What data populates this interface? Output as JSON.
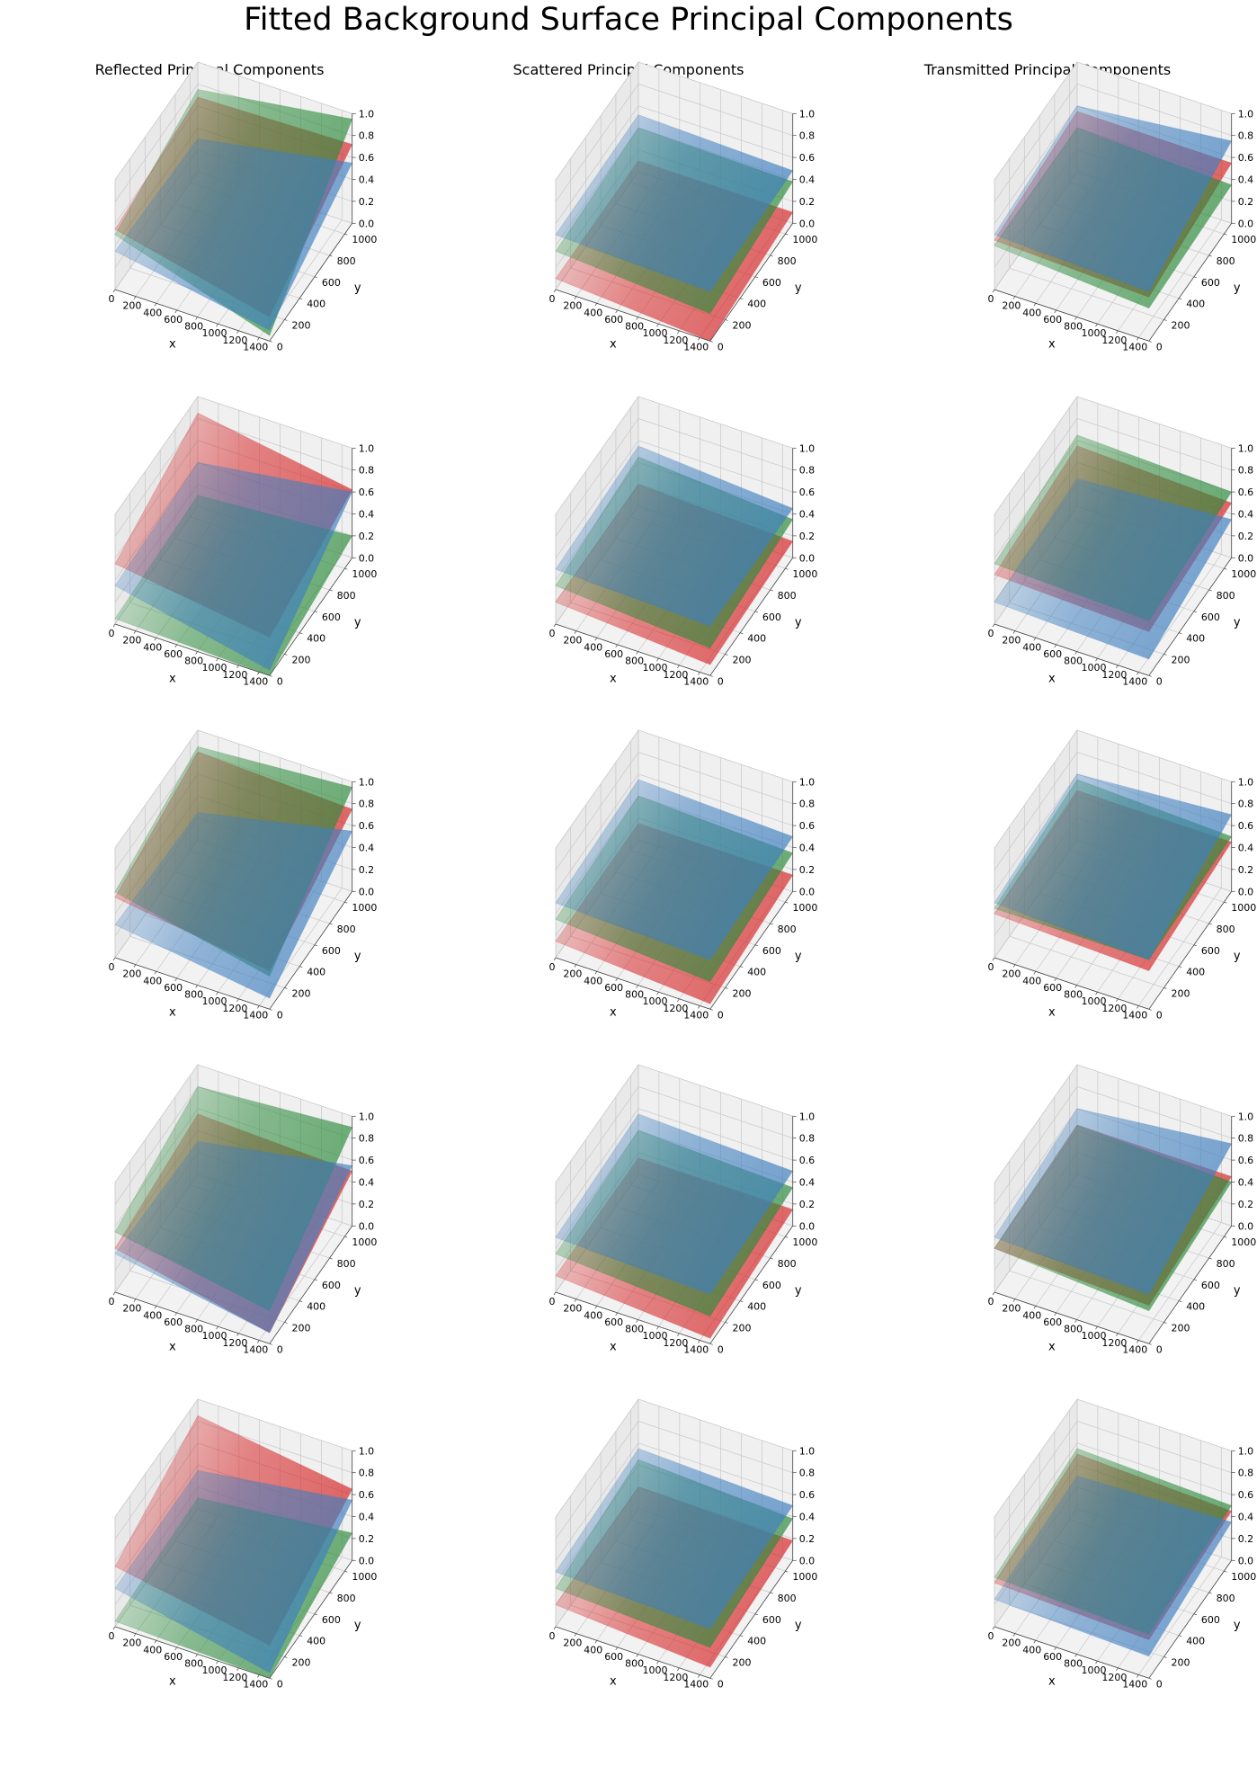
{
  "figure": {
    "title": "Fitted Background Surface Principal Components",
    "column_titles": [
      "Reflected Principal Components",
      "Scattered Principal Components",
      "Transmitted Principal Components"
    ]
  },
  "colors": {
    "red": "#d62728",
    "green": "#2e8b3d",
    "blue": "#3f7fbf"
  },
  "axes_common": {
    "xlabel": "x",
    "ylabel": "y",
    "xlim": [
      0,
      1500
    ],
    "ylim": [
      0,
      1100
    ],
    "zlim": [
      0,
      1
    ],
    "x_ticks": [
      0,
      200,
      400,
      600,
      800,
      1000,
      1200,
      1400
    ],
    "y_ticks": [
      0,
      200,
      400,
      600,
      800,
      1000
    ],
    "z_ticks": [
      "0.0",
      "0.2",
      "0.4",
      "0.6",
      "0.8",
      "1.0"
    ]
  },
  "chart_data": {
    "type": "surface3d",
    "title": "Fitted Background Surface Principal Components",
    "rows": 5,
    "panels": [
      {
        "column": "Reflected Principal Components",
        "row": 1,
        "surfaces": [
          {
            "channel": "red",
            "corners": [
              0.55,
              0.68,
              0.72,
              0.22
            ]
          },
          {
            "channel": "green",
            "corners": [
              0.5,
              0.75,
              0.95,
              0.05
            ]
          },
          {
            "channel": "blue",
            "corners": [
              0.35,
              0.3,
              0.55,
              0.1
            ]
          }
        ]
      },
      {
        "column": "Scattered Principal Components",
        "row": 1,
        "surfaces": [
          {
            "channel": "red",
            "corners": [
              0.1,
              0.1,
              0.1,
              0.0
            ]
          },
          {
            "channel": "green",
            "corners": [
              0.35,
              0.4,
              0.38,
              0.25
            ]
          },
          {
            "channel": "blue",
            "corners": [
              0.5,
              0.52,
              0.48,
              0.45
            ]
          }
        ]
      },
      {
        "column": "Transmitted Principal Components",
        "row": 1,
        "surfaces": [
          {
            "channel": "red",
            "corners": [
              0.45,
              0.55,
              0.55,
              0.4
            ]
          },
          {
            "channel": "green",
            "corners": [
              0.4,
              0.4,
              0.35,
              0.3
            ]
          },
          {
            "channel": "blue",
            "corners": [
              0.5,
              0.6,
              0.75,
              0.45
            ]
          }
        ]
      },
      {
        "column": "Reflected Principal Components",
        "row": 2,
        "surfaces": [
          {
            "channel": "red",
            "corners": [
              0.55,
              0.85,
              0.62,
              0.35
            ]
          },
          {
            "channel": "green",
            "corners": [
              0.05,
              0.1,
              0.2,
              0.0
            ]
          },
          {
            "channel": "blue",
            "corners": [
              0.35,
              0.4,
              0.6,
              0.05
            ]
          }
        ]
      },
      {
        "column": "Scattered Principal Components",
        "row": 2,
        "surfaces": [
          {
            "channel": "red",
            "corners": [
              0.2,
              0.2,
              0.15,
              0.1
            ]
          },
          {
            "channel": "green",
            "corners": [
              0.35,
              0.45,
              0.35,
              0.25
            ]
          },
          {
            "channel": "blue",
            "corners": [
              0.5,
              0.55,
              0.45,
              0.45
            ]
          }
        ]
      },
      {
        "column": "Transmitted Principal Components",
        "row": 2,
        "surfaces": [
          {
            "channel": "red",
            "corners": [
              0.45,
              0.55,
              0.5,
              0.4
            ]
          },
          {
            "channel": "green",
            "corners": [
              0.55,
              0.65,
              0.6,
              0.5
            ]
          },
          {
            "channel": "blue",
            "corners": [
              0.2,
              0.25,
              0.35,
              0.15
            ]
          }
        ]
      },
      {
        "column": "Reflected Principal Components",
        "row": 3,
        "surfaces": [
          {
            "channel": "red",
            "corners": [
              0.55,
              0.8,
              0.75,
              0.35
            ]
          },
          {
            "channel": "green",
            "corners": [
              0.6,
              0.85,
              0.95,
              0.3
            ]
          },
          {
            "channel": "blue",
            "corners": [
              0.3,
              0.25,
              0.55,
              0.1
            ]
          }
        ]
      },
      {
        "column": "Scattered Principal Components",
        "row": 3,
        "surfaces": [
          {
            "channel": "red",
            "corners": [
              0.15,
              0.15,
              0.15,
              0.05
            ]
          },
          {
            "channel": "green",
            "corners": [
              0.35,
              0.4,
              0.35,
              0.25
            ]
          },
          {
            "channel": "blue",
            "corners": [
              0.5,
              0.55,
              0.5,
              0.45
            ]
          }
        ]
      },
      {
        "column": "Transmitted Principal Components",
        "row": 3,
        "surfaces": [
          {
            "channel": "red",
            "corners": [
              0.4,
              0.45,
              0.45,
              0.35
            ]
          },
          {
            "channel": "green",
            "corners": [
              0.45,
              0.55,
              0.5,
              0.45
            ]
          },
          {
            "channel": "blue",
            "corners": [
              0.5,
              0.6,
              0.7,
              0.45
            ]
          }
        ]
      },
      {
        "column": "Reflected Principal Components",
        "row": 4,
        "surfaces": [
          {
            "channel": "red",
            "corners": [
              0.4,
              0.55,
              0.5,
              0.1
            ]
          },
          {
            "channel": "green",
            "corners": [
              0.55,
              0.8,
              0.9,
              0.3
            ]
          },
          {
            "channel": "blue",
            "corners": [
              0.35,
              0.3,
              0.55,
              0.1
            ]
          }
        ]
      },
      {
        "column": "Scattered Principal Components",
        "row": 4,
        "surfaces": [
          {
            "channel": "red",
            "corners": [
              0.15,
              0.15,
              0.15,
              0.05
            ]
          },
          {
            "channel": "green",
            "corners": [
              0.35,
              0.4,
              0.35,
              0.25
            ]
          },
          {
            "channel": "blue",
            "corners": [
              0.5,
              0.55,
              0.5,
              0.45
            ]
          }
        ]
      },
      {
        "column": "Transmitted Principal Components",
        "row": 4,
        "surfaces": [
          {
            "channel": "red",
            "corners": [
              0.4,
              0.45,
              0.45,
              0.35
            ]
          },
          {
            "channel": "green",
            "corners": [
              0.4,
              0.45,
              0.4,
              0.3
            ]
          },
          {
            "channel": "blue",
            "corners": [
              0.5,
              0.6,
              0.75,
              0.45
            ]
          }
        ]
      },
      {
        "column": "Reflected Principal Components",
        "row": 5,
        "surfaces": [
          {
            "channel": "red",
            "corners": [
              0.55,
              0.85,
              0.65,
              0.3
            ]
          },
          {
            "channel": "green",
            "corners": [
              0.05,
              0.1,
              0.25,
              0.0
            ]
          },
          {
            "channel": "blue",
            "corners": [
              0.35,
              0.35,
              0.55,
              0.05
            ]
          }
        ]
      },
      {
        "column": "Scattered Principal Components",
        "row": 5,
        "surfaces": [
          {
            "channel": "red",
            "corners": [
              0.2,
              0.2,
              0.18,
              0.1
            ]
          },
          {
            "channel": "green",
            "corners": [
              0.35,
              0.45,
              0.38,
              0.28
            ]
          },
          {
            "channel": "blue",
            "corners": [
              0.5,
              0.55,
              0.5,
              0.45
            ]
          }
        ]
      },
      {
        "column": "Transmitted Principal Components",
        "row": 5,
        "surfaces": [
          {
            "channel": "red",
            "corners": [
              0.4,
              0.5,
              0.45,
              0.35
            ]
          },
          {
            "channel": "green",
            "corners": [
              0.45,
              0.55,
              0.5,
              0.4
            ]
          },
          {
            "channel": "blue",
            "corners": [
              0.25,
              0.3,
              0.35,
              0.2
            ]
          }
        ]
      }
    ]
  }
}
